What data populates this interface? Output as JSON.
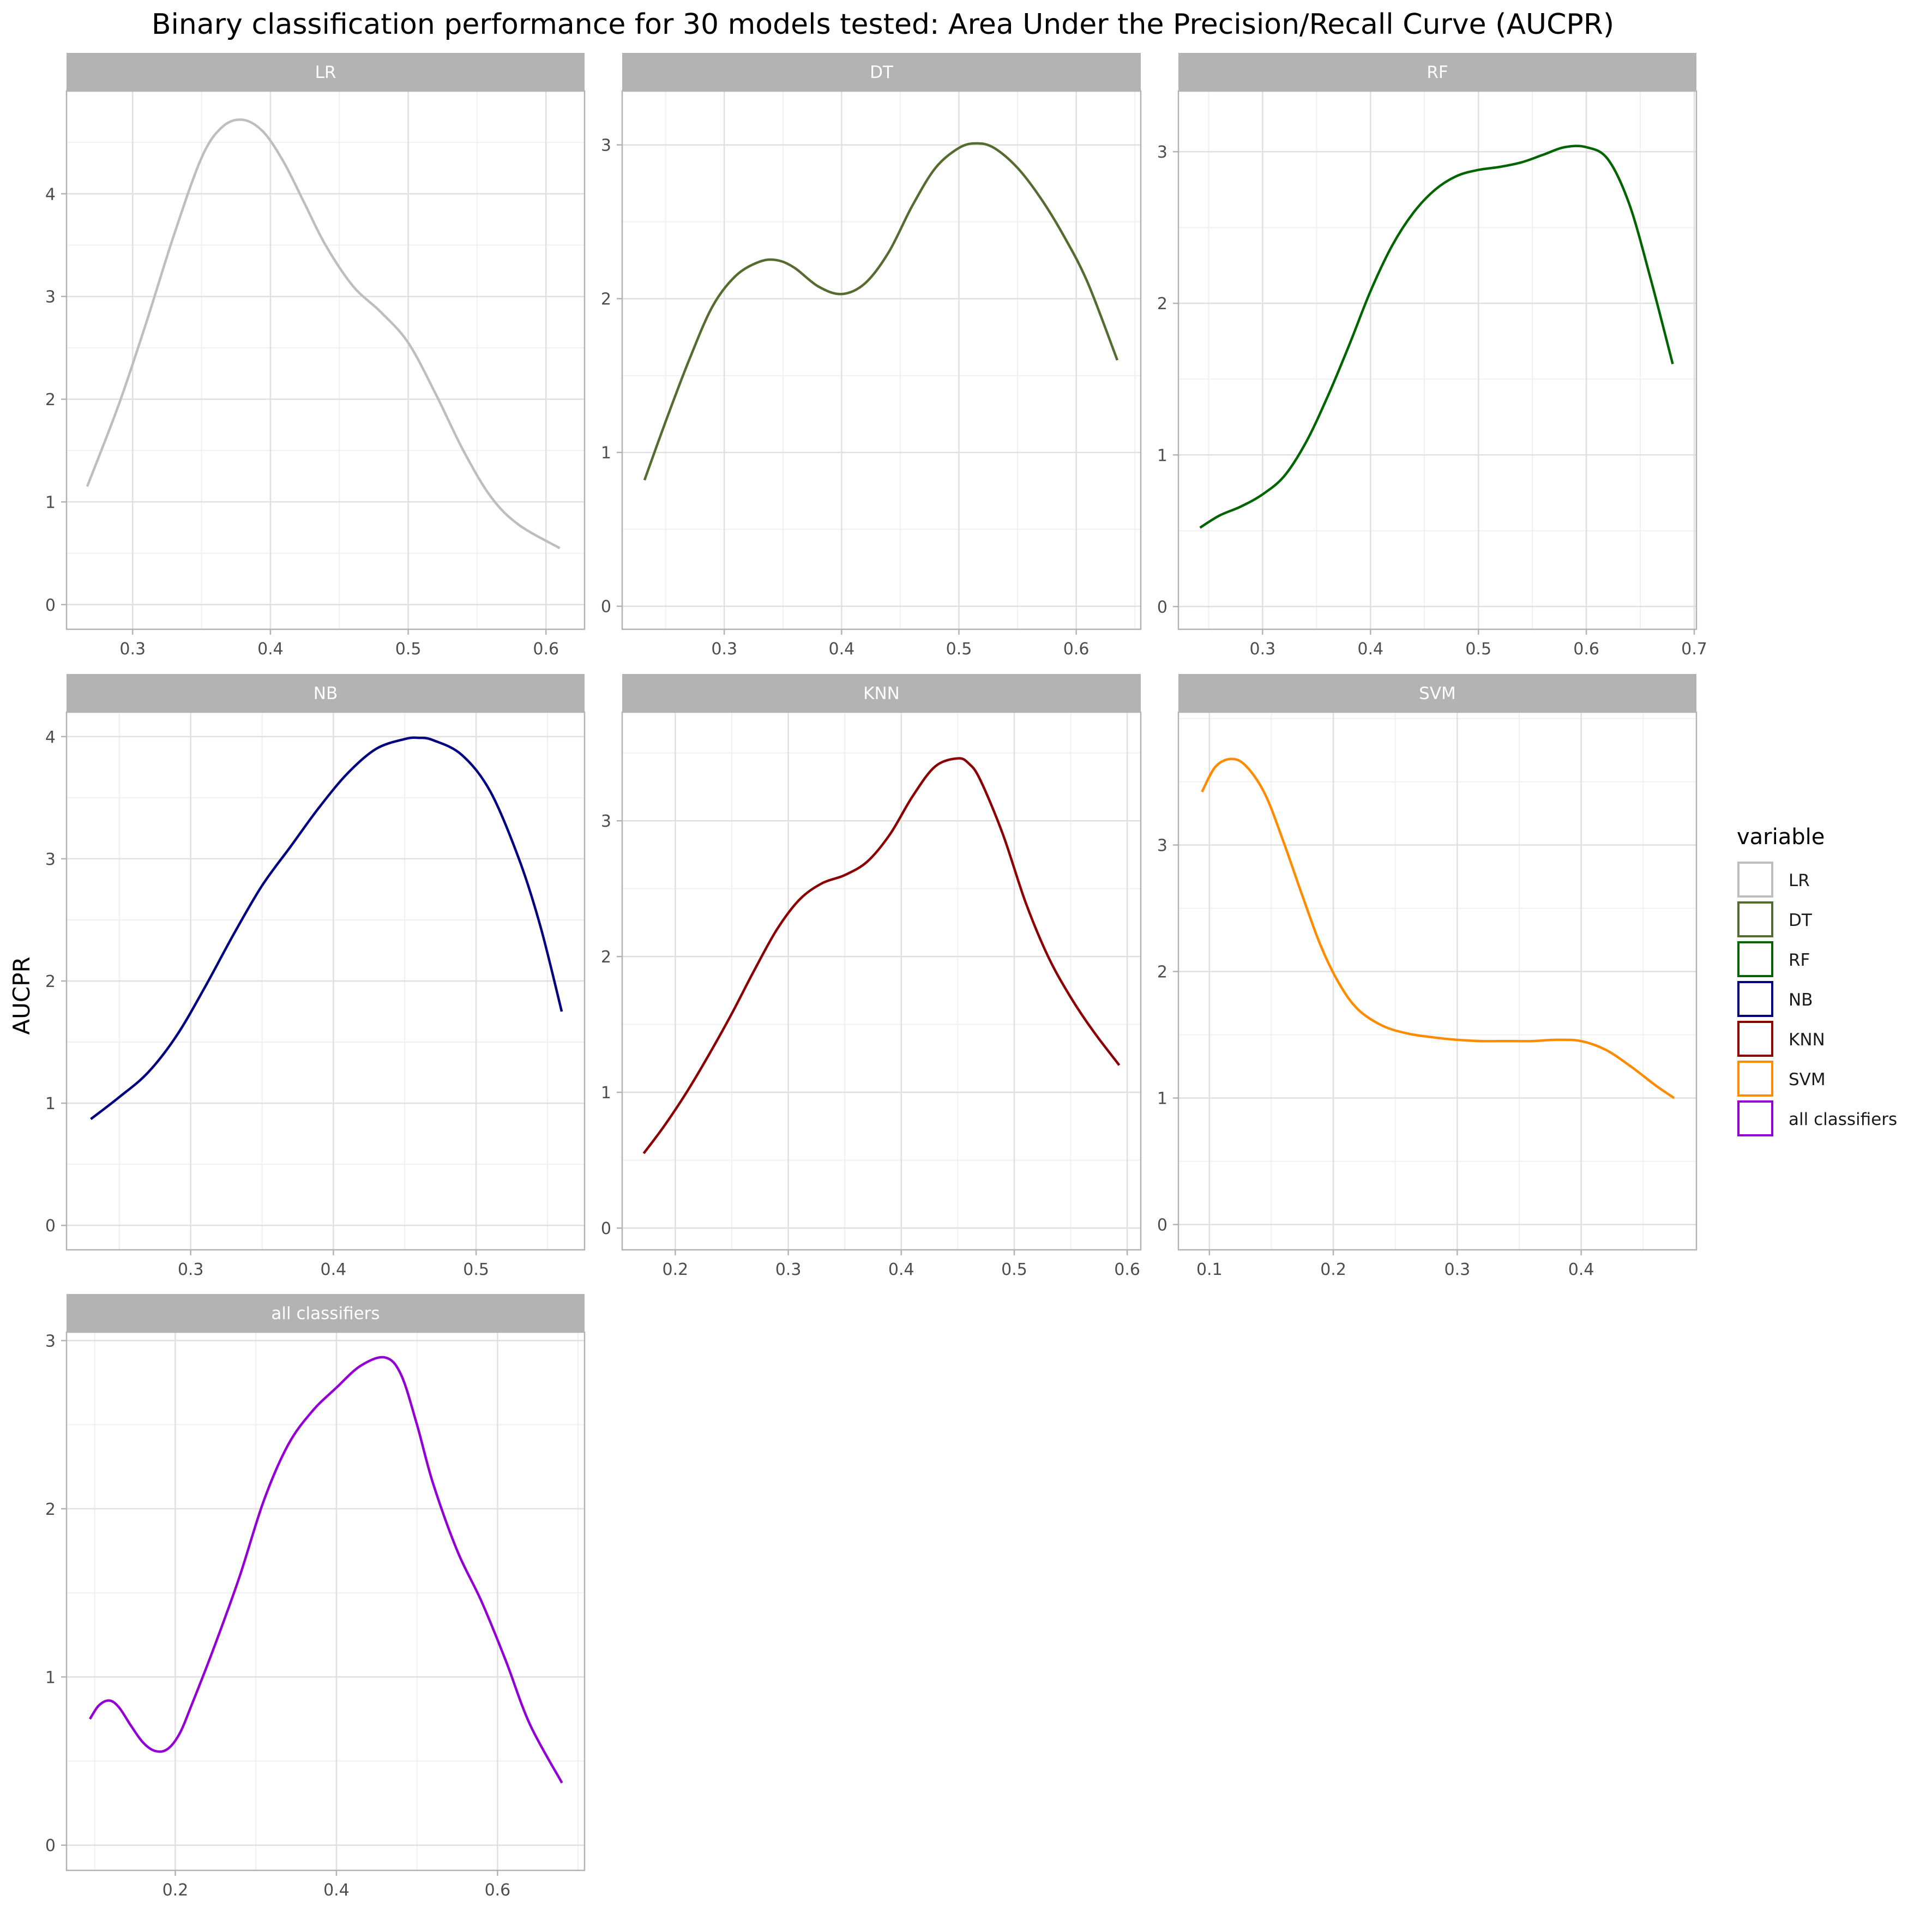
{
  "title": "Binary classification performance for 30 models tested: Area Under the Precision/Recall Curve (AUCPR)",
  "ylabel": "AUCPR",
  "legend": {
    "title": "variable",
    "placement": "right",
    "items": [
      {
        "label": "LR",
        "color": "#bebebe"
      },
      {
        "label": "DT",
        "color": "#556b2f"
      },
      {
        "label": "RF",
        "color": "#006400"
      },
      {
        "label": "NB",
        "color": "#000080"
      },
      {
        "label": "KNN",
        "color": "#8b0000"
      },
      {
        "label": "SVM",
        "color": "#ff8c00"
      },
      {
        "label": "all classifiers",
        "color": "#9400d3"
      }
    ]
  },
  "chart_data": [
    {
      "type": "line",
      "name": "LR",
      "color": "#bebebe",
      "grid": true,
      "xlim": [
        0.252,
        0.628
      ],
      "ylim": [
        -0.24,
        5.0
      ],
      "xticks": [
        0.3,
        0.4,
        0.5,
        0.6
      ],
      "xtick_labels": [
        "0.3",
        "0.4",
        "0.5",
        "0.6"
      ],
      "yticks": [
        0,
        1,
        2,
        3,
        4
      ],
      "ytick_labels": [
        "0",
        "1",
        "2",
        "3",
        "4"
      ],
      "x": [
        0.267,
        0.29,
        0.31,
        0.33,
        0.35,
        0.365,
        0.38,
        0.395,
        0.41,
        0.425,
        0.44,
        0.46,
        0.48,
        0.5,
        0.52,
        0.54,
        0.56,
        0.58,
        0.61
      ],
      "y": [
        1.15,
        1.95,
        2.75,
        3.6,
        4.35,
        4.65,
        4.72,
        4.6,
        4.3,
        3.9,
        3.5,
        3.1,
        2.85,
        2.55,
        2.05,
        1.5,
        1.05,
        0.78,
        0.55
      ]
    },
    {
      "type": "line",
      "name": "DT",
      "color": "#556b2f",
      "grid": true,
      "xlim": [
        0.213,
        0.655
      ],
      "ylim": [
        -0.15,
        3.35
      ],
      "xticks": [
        0.3,
        0.4,
        0.5,
        0.6
      ],
      "xtick_labels": [
        "0.3",
        "0.4",
        "0.5",
        "0.6"
      ],
      "yticks": [
        0,
        1,
        2,
        3
      ],
      "ytick_labels": [
        "0",
        "1",
        "2",
        "3"
      ],
      "x": [
        0.232,
        0.25,
        0.27,
        0.29,
        0.31,
        0.33,
        0.345,
        0.36,
        0.38,
        0.4,
        0.42,
        0.44,
        0.46,
        0.48,
        0.5,
        0.515,
        0.53,
        0.55,
        0.57,
        0.59,
        0.61,
        0.635
      ],
      "y": [
        0.82,
        1.2,
        1.6,
        1.95,
        2.15,
        2.24,
        2.25,
        2.2,
        2.08,
        2.03,
        2.1,
        2.3,
        2.6,
        2.85,
        2.98,
        3.01,
        2.98,
        2.85,
        2.65,
        2.4,
        2.1,
        1.6
      ]
    },
    {
      "type": "line",
      "name": "RF",
      "color": "#006400",
      "grid": true,
      "xlim": [
        0.222,
        0.702
      ],
      "ylim": [
        -0.15,
        3.4
      ],
      "xticks": [
        0.3,
        0.4,
        0.5,
        0.6,
        0.7
      ],
      "xtick_labels": [
        "0.3",
        "0.4",
        "0.5",
        "0.6",
        "0.7"
      ],
      "yticks": [
        0,
        1,
        2,
        3
      ],
      "ytick_labels": [
        "0",
        "1",
        "2",
        "3"
      ],
      "x": [
        0.242,
        0.26,
        0.28,
        0.3,
        0.32,
        0.34,
        0.36,
        0.38,
        0.4,
        0.42,
        0.44,
        0.46,
        0.48,
        0.5,
        0.52,
        0.54,
        0.56,
        0.58,
        0.6,
        0.62,
        0.64,
        0.66,
        0.68
      ],
      "y": [
        0.52,
        0.6,
        0.66,
        0.74,
        0.86,
        1.08,
        1.38,
        1.72,
        2.08,
        2.38,
        2.6,
        2.75,
        2.84,
        2.88,
        2.9,
        2.93,
        2.98,
        3.03,
        3.03,
        2.95,
        2.65,
        2.15,
        1.6
      ]
    },
    {
      "type": "line",
      "name": "NB",
      "color": "#000080",
      "grid": true,
      "xlim": [
        0.213,
        0.576
      ],
      "ylim": [
        -0.2,
        4.2
      ],
      "xticks": [
        0.3,
        0.4,
        0.5
      ],
      "xtick_labels": [
        "0.3",
        "0.4",
        "0.5"
      ],
      "yticks": [
        0,
        1,
        2,
        3,
        4
      ],
      "ytick_labels": [
        "0",
        "1",
        "2",
        "3",
        "4"
      ],
      "x": [
        0.23,
        0.25,
        0.27,
        0.29,
        0.31,
        0.33,
        0.35,
        0.37,
        0.39,
        0.41,
        0.43,
        0.45,
        0.46,
        0.47,
        0.49,
        0.51,
        0.53,
        0.545,
        0.56
      ],
      "y": [
        0.87,
        1.05,
        1.25,
        1.55,
        1.95,
        2.38,
        2.78,
        3.1,
        3.42,
        3.7,
        3.9,
        3.98,
        3.99,
        3.97,
        3.85,
        3.55,
        3.0,
        2.45,
        1.75
      ]
    },
    {
      "type": "line",
      "name": "KNN",
      "color": "#8b0000",
      "grid": true,
      "xlim": [
        0.153,
        0.612
      ],
      "ylim": [
        -0.16,
        3.8
      ],
      "xticks": [
        0.2,
        0.3,
        0.4,
        0.5,
        0.6
      ],
      "xtick_labels": [
        "0.2",
        "0.3",
        "0.4",
        "0.5",
        "0.6"
      ],
      "yticks": [
        0,
        1,
        2,
        3
      ],
      "ytick_labels": [
        "0",
        "1",
        "2",
        "3"
      ],
      "x": [
        0.172,
        0.19,
        0.21,
        0.23,
        0.25,
        0.27,
        0.29,
        0.31,
        0.33,
        0.35,
        0.37,
        0.39,
        0.41,
        0.43,
        0.45,
        0.46,
        0.47,
        0.49,
        0.51,
        0.53,
        0.55,
        0.57,
        0.593
      ],
      "y": [
        0.55,
        0.75,
        1.0,
        1.28,
        1.58,
        1.9,
        2.2,
        2.42,
        2.54,
        2.6,
        2.7,
        2.9,
        3.18,
        3.4,
        3.46,
        3.42,
        3.3,
        2.9,
        2.4,
        2.0,
        1.7,
        1.45,
        1.2
      ]
    },
    {
      "type": "line",
      "name": "SVM",
      "color": "#ff8c00",
      "grid": true,
      "xlim": [
        0.075,
        0.493
      ],
      "ylim": [
        -0.2,
        4.05
      ],
      "xticks": [
        0.1,
        0.2,
        0.3,
        0.4
      ],
      "xtick_labels": [
        "0.1",
        "0.2",
        "0.3",
        "0.4"
      ],
      "yticks": [
        0,
        1,
        2,
        3
      ],
      "ytick_labels": [
        "0",
        "1",
        "2",
        "3"
      ],
      "x": [
        0.094,
        0.105,
        0.118,
        0.13,
        0.145,
        0.16,
        0.175,
        0.19,
        0.205,
        0.22,
        0.24,
        0.26,
        0.28,
        0.3,
        0.32,
        0.34,
        0.36,
        0.38,
        0.4,
        0.42,
        0.44,
        0.46,
        0.475
      ],
      "y": [
        3.42,
        3.62,
        3.68,
        3.62,
        3.4,
        3.02,
        2.6,
        2.2,
        1.9,
        1.7,
        1.57,
        1.51,
        1.48,
        1.46,
        1.45,
        1.45,
        1.45,
        1.46,
        1.45,
        1.38,
        1.25,
        1.1,
        1.0
      ]
    },
    {
      "type": "line",
      "name": "all classifiers",
      "color": "#9400d3",
      "grid": true,
      "xlim": [
        0.065,
        0.708
      ],
      "ylim": [
        -0.15,
        3.05
      ],
      "xticks": [
        0.2,
        0.4,
        0.6
      ],
      "xtick_labels": [
        "0.2",
        "0.4",
        "0.6"
      ],
      "yticks": [
        0,
        1,
        2,
        3
      ],
      "ytick_labels": [
        "0",
        "1",
        "2",
        "3"
      ],
      "x": [
        0.094,
        0.105,
        0.118,
        0.13,
        0.145,
        0.16,
        0.175,
        0.19,
        0.205,
        0.22,
        0.25,
        0.28,
        0.31,
        0.34,
        0.37,
        0.4,
        0.43,
        0.46,
        0.48,
        0.5,
        0.52,
        0.55,
        0.58,
        0.61,
        0.64,
        0.68
      ],
      "y": [
        0.75,
        0.83,
        0.86,
        0.82,
        0.71,
        0.61,
        0.56,
        0.57,
        0.66,
        0.83,
        1.2,
        1.6,
        2.05,
        2.38,
        2.58,
        2.72,
        2.85,
        2.9,
        2.8,
        2.5,
        2.15,
        1.75,
        1.45,
        1.1,
        0.72,
        0.37
      ]
    }
  ]
}
